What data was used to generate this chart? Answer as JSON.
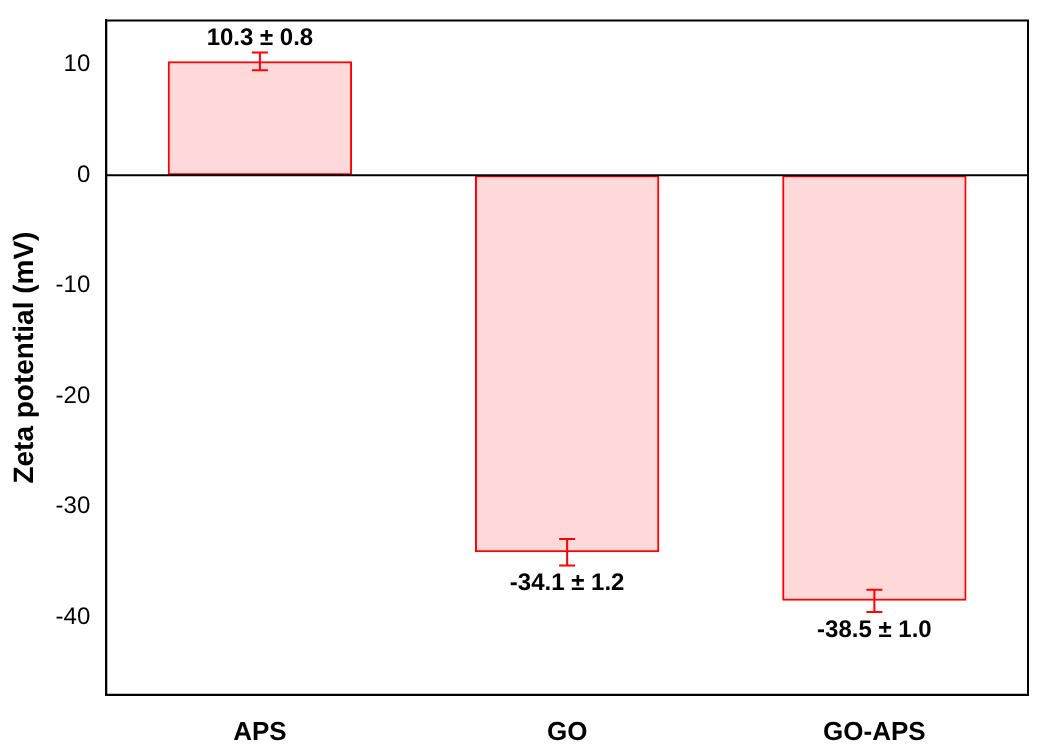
{
  "chart_data": {
    "type": "bar",
    "ylabel": "Zeta potential (mV)",
    "categories": [
      "APS",
      "GO",
      "GO-APS"
    ],
    "values": [
      10.3,
      -34.1,
      -38.5
    ],
    "errors": [
      0.8,
      1.2,
      1.0
    ],
    "value_labels": [
      "10.3 ± 0.8",
      "-34.1 ± 1.2",
      "-38.5 ± 1.0"
    ],
    "color": "#ff0000",
    "ylim": [
      -47,
      14
    ],
    "yticks": [
      10,
      0,
      -10,
      -20,
      -30,
      -40
    ],
    "ref_lines": [
      {
        "axis": "y",
        "value": 0,
        "color": "#000000"
      }
    ],
    "grid": false,
    "legend": false
  }
}
